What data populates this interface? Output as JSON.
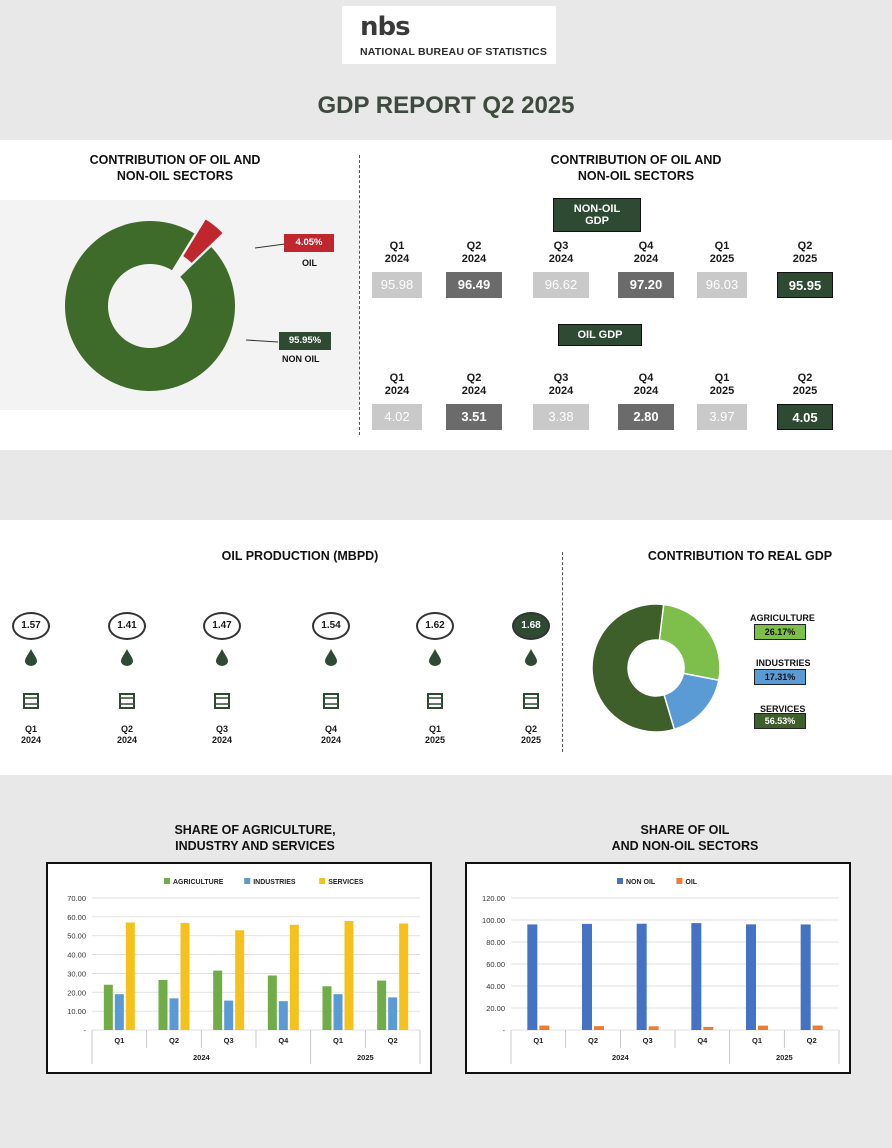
{
  "logo": {
    "mark": "nbs",
    "name": "NATIONAL BUREAU OF STATISTICS"
  },
  "title": "GDP REPORT Q2 2025",
  "left_top": {
    "title_line1": "CONTRIBUTION OF OIL AND",
    "title_line2": "NON-OIL SECTORS",
    "oil_pct": "4.05%",
    "oil_label": "OIL",
    "nonoil_pct": "95.95%",
    "nonoil_label": "NON OIL"
  },
  "right_top": {
    "title_line1": "CONTRIBUTION OF OIL AND",
    "title_line2": "NON-OIL SECTORS",
    "nonoil_tag": "NON-OIL GDP",
    "oil_tag": "OIL GDP",
    "quarters": [
      {
        "q": "Q1",
        "y": "2024"
      },
      {
        "q": "Q2",
        "y": "2024"
      },
      {
        "q": "Q3",
        "y": "2024"
      },
      {
        "q": "Q4",
        "y": "2024"
      },
      {
        "q": "Q1",
        "y": "2025"
      },
      {
        "q": "Q2",
        "y": "2025"
      }
    ],
    "nonoil_values": [
      "95.98",
      "96.49",
      "96.62",
      "97.20",
      "96.03",
      "95.95"
    ],
    "oil_values": [
      "4.02",
      "3.51",
      "3.38",
      "2.80",
      "3.97",
      "4.05"
    ]
  },
  "oil_production": {
    "title": "OIL PRODUCTION (MBPD)",
    "items": [
      {
        "value": "1.57",
        "q": "Q1",
        "y": "2024"
      },
      {
        "value": "1.41",
        "q": "Q2",
        "y": "2024"
      },
      {
        "value": "1.47",
        "q": "Q3",
        "y": "2024"
      },
      {
        "value": "1.54",
        "q": "Q4",
        "y": "2024"
      },
      {
        "value": "1.62",
        "q": "Q1",
        "y": "2025"
      },
      {
        "value": "1.68",
        "q": "Q2",
        "y": "2025"
      }
    ]
  },
  "real_gdp": {
    "title": "CONTRIBUTION TO REAL GDP",
    "agriculture_label": "AGRICULTURE",
    "agriculture_pct": "26.17%",
    "industries_label": "INDUSTRIES",
    "industries_pct": "17.31%",
    "services_label": "SERVICES",
    "services_pct": "56.53%"
  },
  "colors": {
    "dark_green": "#2f4a33",
    "oil_red": "#c0262d",
    "donut_green": "#3e6a2a",
    "agri_green": "#7dbf4a",
    "ind_blue": "#5b9bd5",
    "serv_dark": "#3e5f2a",
    "bar_agri": "#70ad47",
    "bar_ind": "#5b9bd5",
    "bar_serv": "#f4c21b",
    "bar_nonoil": "#4472c4",
    "bar_oil": "#ed7d31"
  },
  "share_ais": {
    "title_line1": "SHARE OF AGRICULTURE,",
    "title_line2": "INDUSTRY AND SERVICES"
  },
  "share_oil": {
    "title_line1": "SHARE OF OIL",
    "title_line2": "AND NON-OIL SECTORS"
  },
  "chart_data": [
    {
      "type": "pie",
      "labels": [
        "OIL",
        "NON OIL"
      ],
      "values": [
        4.05,
        95.95
      ]
    },
    {
      "type": "pie",
      "labels": [
        "AGRICULTURE",
        "INDUSTRIES",
        "SERVICES"
      ],
      "values": [
        26.17,
        17.31,
        56.53
      ]
    },
    {
      "type": "bar",
      "categories": [
        "Q1",
        "Q2",
        "Q3",
        "Q4",
        "Q1",
        "Q2"
      ],
      "groups": [
        "2024",
        "2025"
      ],
      "series": [
        {
          "name": "AGRICULTURE",
          "values": [
            24.0,
            26.5,
            31.5,
            28.9,
            23.2,
            26.2
          ]
        },
        {
          "name": "INDUSTRIES",
          "values": [
            19.0,
            16.8,
            15.6,
            15.3,
            19.0,
            17.3
          ]
        },
        {
          "name": "SERVICES",
          "values": [
            57.0,
            56.8,
            52.9,
            55.8,
            57.8,
            56.5
          ]
        }
      ],
      "yticks": [
        "-",
        "10.00",
        "20.00",
        "30.00",
        "40.00",
        "50.00",
        "60.00",
        "70.00"
      ],
      "ylim": [
        0,
        70
      ],
      "legend": "top"
    },
    {
      "type": "bar",
      "categories": [
        "Q1",
        "Q2",
        "Q3",
        "Q4",
        "Q1",
        "Q2"
      ],
      "groups": [
        "2024",
        "2025"
      ],
      "series": [
        {
          "name": "NON OIL",
          "values": [
            95.98,
            96.49,
            96.62,
            97.2,
            96.03,
            95.95
          ]
        },
        {
          "name": "OIL",
          "values": [
            4.02,
            3.51,
            3.38,
            2.8,
            3.97,
            4.05
          ]
        }
      ],
      "yticks": [
        "-",
        "20.00",
        "40.00",
        "60.00",
        "80.00",
        "100.00",
        "120.00"
      ],
      "ylim": [
        0,
        120
      ],
      "legend": "top"
    }
  ]
}
